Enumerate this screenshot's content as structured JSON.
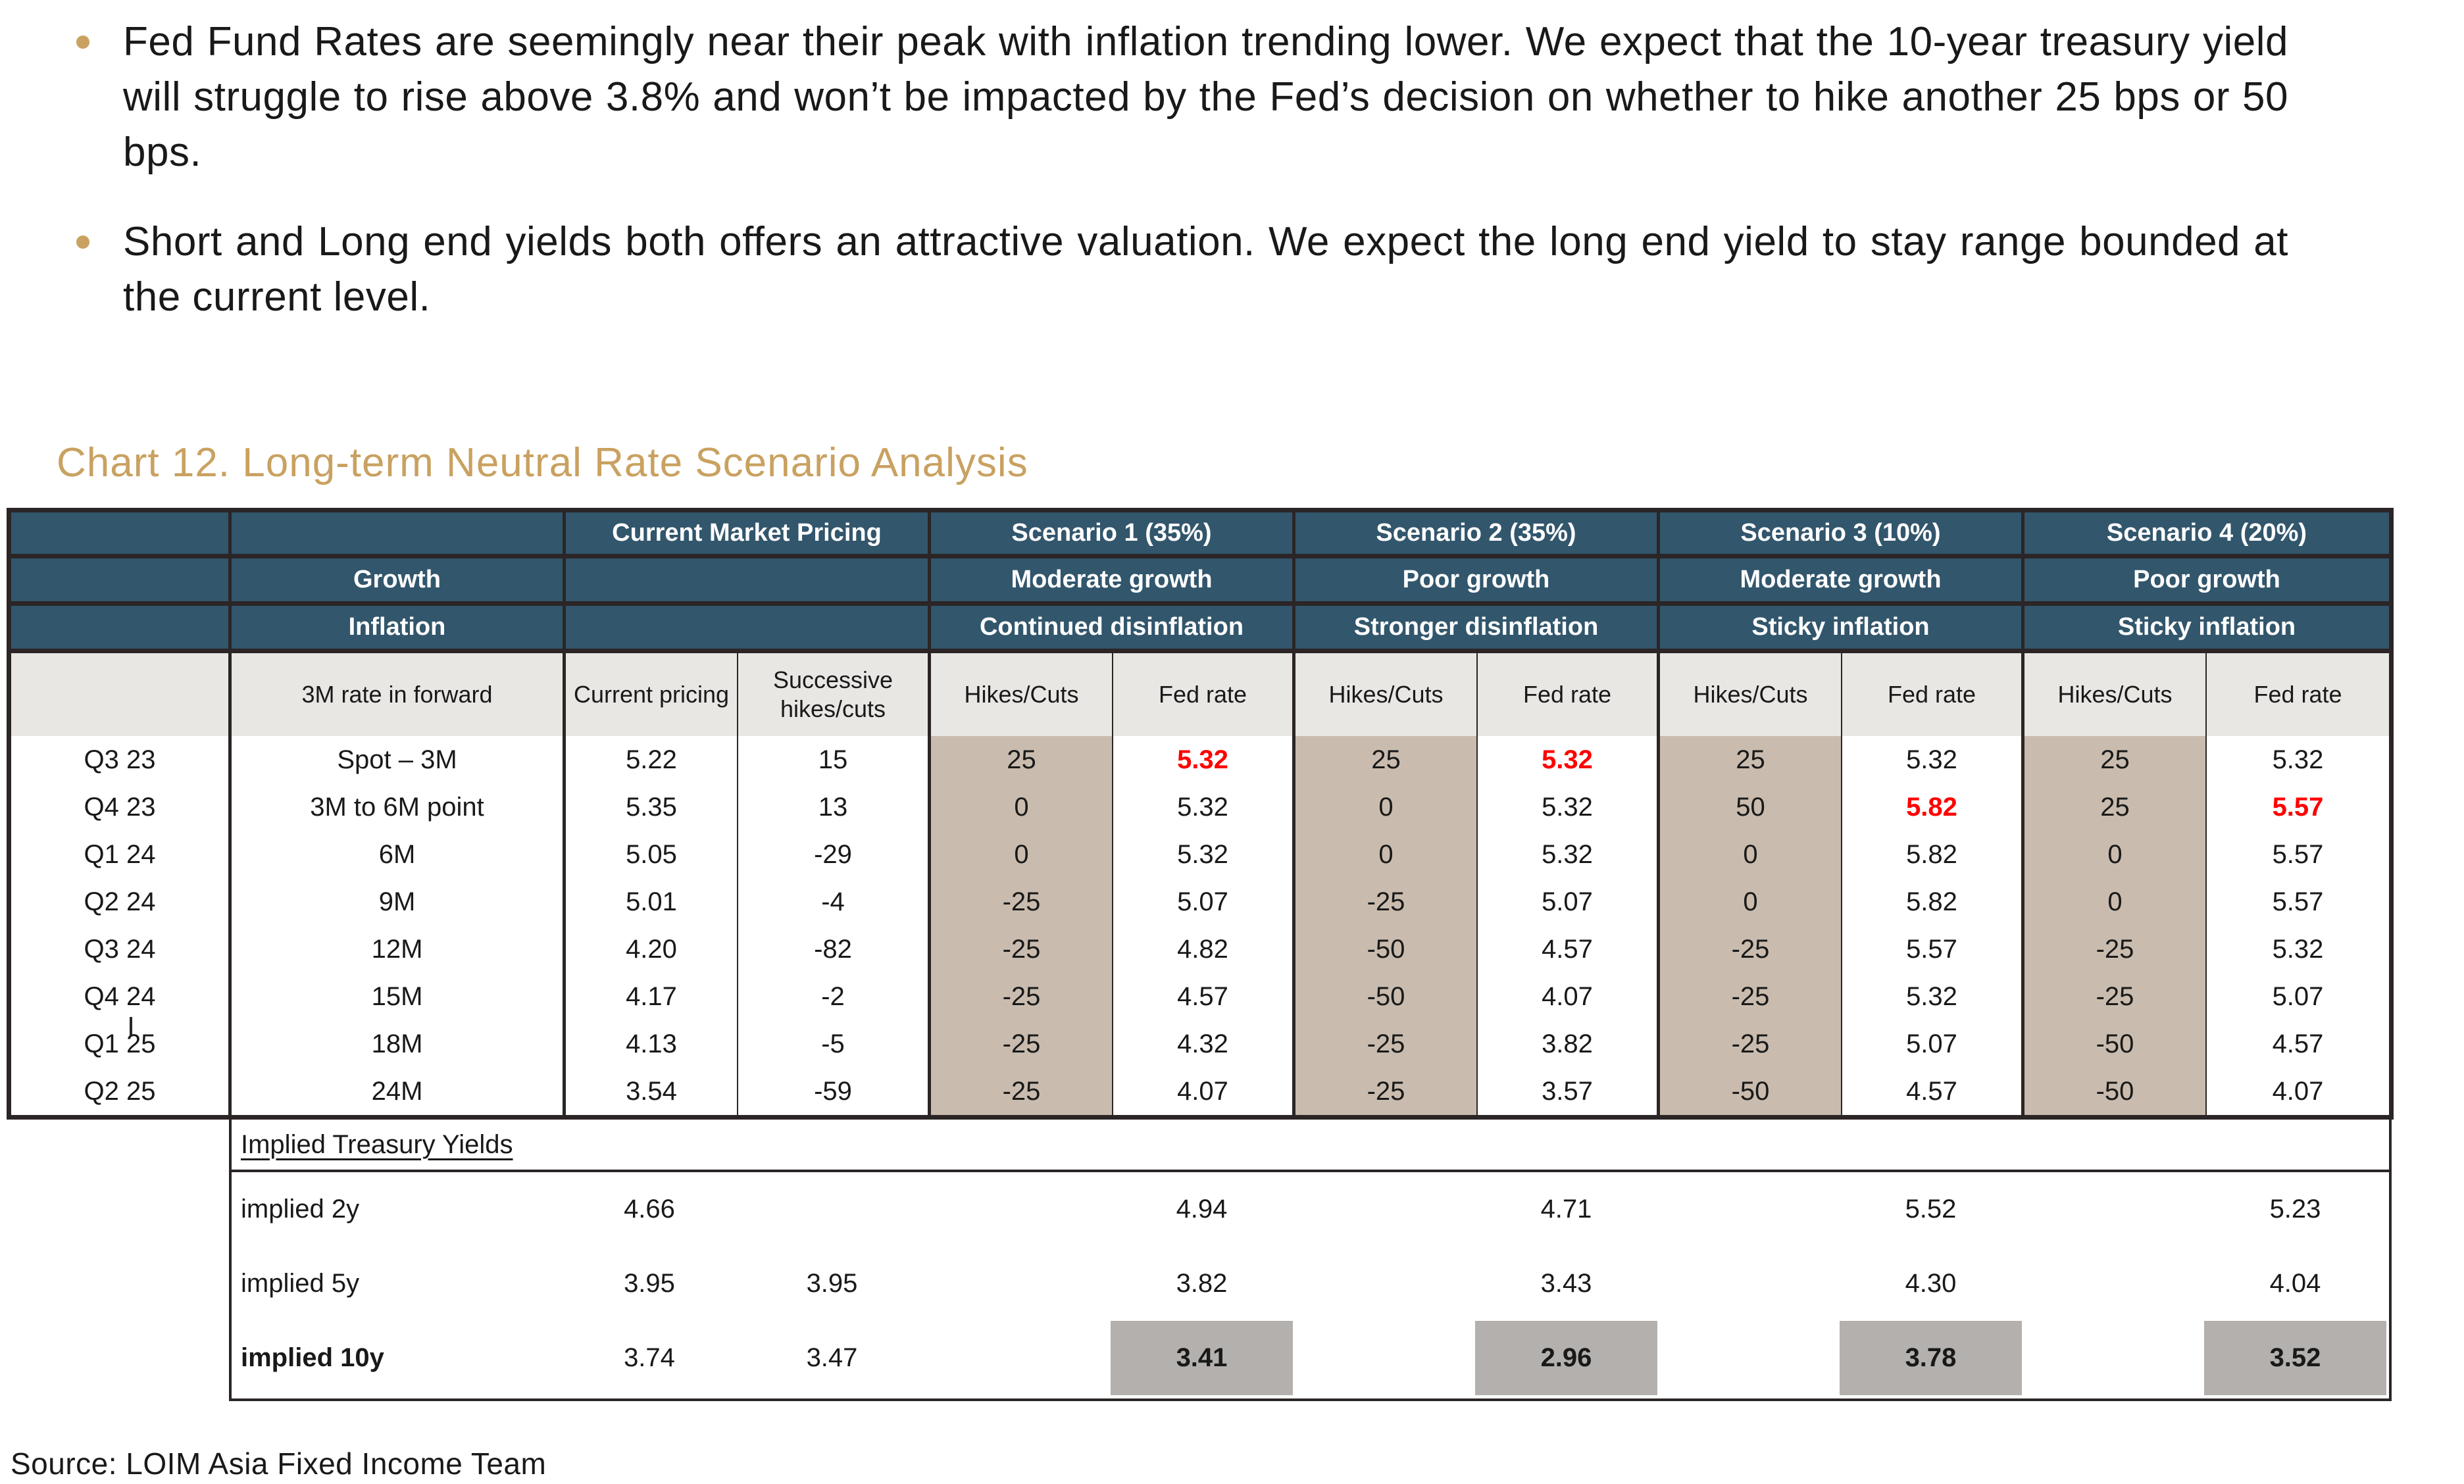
{
  "bullets": [
    {
      "text": "Fed Fund Rates are seemingly near their peak with inflation trending lower. We expect that the 10-year treasury yield will struggle to rise above 3.8% and won’t be impacted by the Fed’s decision on whether to hike another 25 bps or 50 bps."
    },
    {
      "text": "Short and Long end yields both offers an attractive valuation. We expect the long end yield to stay range bounded at the current level."
    }
  ],
  "chart_title": "Chart 12. Long-term Neutral Rate Scenario Analysis",
  "source": "Source: LOIM Asia Fixed Income Team",
  "colors": {
    "accent_gold": "#C9A160",
    "header_blue": "#32566C",
    "hikes_tan": "#C9BCAE",
    "subheader_gray": "#E9E7E4",
    "highlight_gray": "#B4B0AD",
    "peak_rate_red": "#FF0000",
    "border_dark": "#2B2526"
  },
  "table": {
    "market_group_title": "Current Market Pricing",
    "growth_label": "Growth",
    "inflation_label": "Inflation",
    "scenarios": [
      {
        "title": "Scenario 1 (35%)",
        "growth": "Moderate growth",
        "inflation": "Continued disinflation"
      },
      {
        "title": "Scenario 2 (35%)",
        "growth": "Poor growth",
        "inflation": "Stronger disinflation"
      },
      {
        "title": "Scenario 3 (10%)",
        "growth": "Moderate growth",
        "inflation": "Sticky inflation"
      },
      {
        "title": "Scenario 4 (20%)",
        "growth": "Poor growth",
        "inflation": "Sticky inflation"
      }
    ],
    "subheaders": {
      "fwd": "3M rate in forward",
      "current": "Current pricing",
      "successive": "Successive hikes/cuts",
      "hikes": "Hikes/Cuts",
      "fed": "Fed rate"
    },
    "rows": [
      {
        "q": "Q3 23",
        "fwd": "Spot – 3M",
        "cur": "5.22",
        "succ": "15",
        "s1h": "25",
        "s1f": "5.32",
        "s2h": "25",
        "s2f": "5.32",
        "s3h": "25",
        "s3f": "5.32",
        "s4h": "25",
        "s4f": "5.32"
      },
      {
        "q": "Q4 23",
        "fwd": "3M to 6M point",
        "cur": "5.35",
        "succ": "13",
        "s1h": "0",
        "s1f": "5.32",
        "s2h": "0",
        "s2f": "5.32",
        "s3h": "50",
        "s3f": "5.82",
        "s4h": "25",
        "s4f": "5.57"
      },
      {
        "q": "Q1 24",
        "fwd": "6M",
        "cur": "5.05",
        "succ": "-29",
        "s1h": "0",
        "s1f": "5.32",
        "s2h": "0",
        "s2f": "5.32",
        "s3h": "0",
        "s3f": "5.82",
        "s4h": "0",
        "s4f": "5.57"
      },
      {
        "q": "Q2 24",
        "fwd": "9M",
        "cur": "5.01",
        "succ": "-4",
        "s1h": "-25",
        "s1f": "5.07",
        "s2h": "-25",
        "s2f": "5.07",
        "s3h": "0",
        "s3f": "5.82",
        "s4h": "0",
        "s4f": "5.57"
      },
      {
        "q": "Q3 24",
        "fwd": "12M",
        "cur": "4.20",
        "succ": "-82",
        "s1h": "-25",
        "s1f": "4.82",
        "s2h": "-50",
        "s2f": "4.57",
        "s3h": "-25",
        "s3f": "5.57",
        "s4h": "-25",
        "s4f": "5.32"
      },
      {
        "q": "Q4 24",
        "fwd": "15M",
        "cur": "4.17",
        "succ": "-2",
        "s1h": "-25",
        "s1f": "4.57",
        "s2h": "-50",
        "s2f": "4.07",
        "s3h": "-25",
        "s3f": "5.32",
        "s4h": "-25",
        "s4f": "5.07"
      },
      {
        "q": "Q1 25",
        "fwd": "18M",
        "cur": "4.13",
        "succ": "-5",
        "s1h": "-25",
        "s1f": "4.32",
        "s2h": "-25",
        "s2f": "3.82",
        "s3h": "-25",
        "s3f": "5.07",
        "s4h": "-50",
        "s4f": "4.57"
      },
      {
        "q": "Q2 25",
        "fwd": "24M",
        "cur": "3.54",
        "succ": "-59",
        "s1h": "-25",
        "s1f": "4.07",
        "s2h": "-25",
        "s2f": "3.57",
        "s3h": "-50",
        "s3f": "4.57",
        "s4h": "-50",
        "s4f": "4.07"
      }
    ],
    "implied": {
      "title": "Implied Treasury Yields",
      "rows": [
        {
          "label": "implied 2y",
          "cur": "4.66",
          "succ": "",
          "s1": "4.94",
          "s2": "4.71",
          "s3": "5.52",
          "s4": "5.23"
        },
        {
          "label": "implied 5y",
          "cur": "3.95",
          "succ": "3.95",
          "s1": "3.82",
          "s2": "3.43",
          "s3": "4.30",
          "s4": "4.04"
        },
        {
          "label": "implied 10y",
          "cur": "3.74",
          "succ": "3.47",
          "s1": "3.41",
          "s2": "2.96",
          "s3": "3.78",
          "s4": "3.52"
        }
      ]
    }
  }
}
